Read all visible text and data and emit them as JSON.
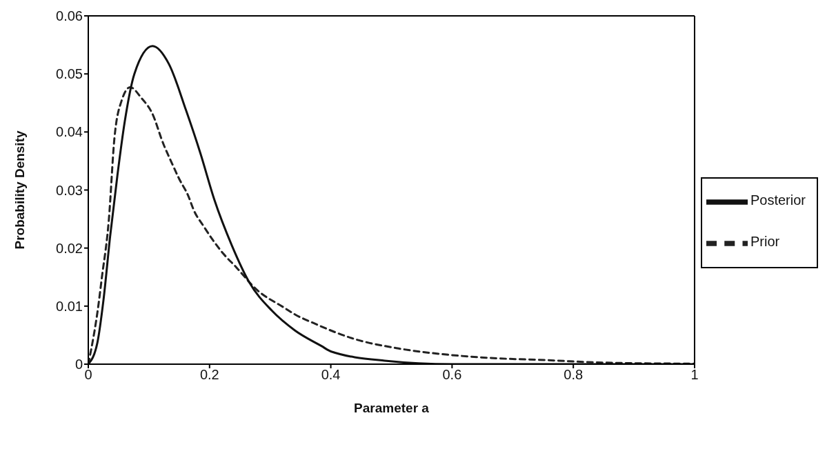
{
  "chart_data": {
    "type": "line",
    "xlabel": "Parameter a",
    "ylabel": "Probability Density",
    "xlim": [
      0,
      1
    ],
    "xticks": [
      0,
      0.2,
      0.4,
      0.6,
      0.8,
      1
    ],
    "ylim": [
      0,
      0.06
    ],
    "yticks": [
      0,
      0.01,
      0.02,
      0.03,
      0.04,
      0.05,
      0.06
    ],
    "legend": "right",
    "marker": "none",
    "series": [
      {
        "name": "Prior",
        "color": "#222222",
        "line_style": "dashed",
        "x": [
          0,
          0.017,
          0.022,
          0.034,
          0.043,
          0.055,
          0.069,
          0.088,
          0.105,
          0.124,
          0.138,
          0.15,
          0.164,
          0.175,
          0.19,
          0.206,
          0.223,
          0.244,
          0.277,
          0.322,
          0.342,
          0.371,
          0.437,
          0.512,
          0.596,
          0.676,
          0.755,
          0.84,
          0.98,
          1
        ],
        "values": [
          0,
          0.0104,
          0.0146,
          0.025,
          0.0388,
          0.0454,
          0.0477,
          0.0458,
          0.0433,
          0.0379,
          0.0346,
          0.0319,
          0.0292,
          0.0263,
          0.0238,
          0.0213,
          0.019,
          0.0167,
          0.0129,
          0.0098,
          0.0085,
          0.0071,
          0.0044,
          0.0027,
          0.0016,
          0.001,
          0.0007,
          0.0003,
          0.0001,
          0.0001
        ]
      },
      {
        "name": "Posterior",
        "color": "#111111",
        "line_style": "solid",
        "x": [
          0,
          0.015,
          0.025,
          0.036,
          0.048,
          0.06,
          0.076,
          0.106,
          0.133,
          0.161,
          0.185,
          0.208,
          0.237,
          0.265,
          0.303,
          0.341,
          0.385,
          0.4,
          0.489,
          0.6,
          0.8,
          1
        ],
        "values": [
          0,
          0.0037,
          0.011,
          0.022,
          0.0325,
          0.0417,
          0.05,
          0.0548,
          0.0517,
          0.0438,
          0.0363,
          0.0283,
          0.0204,
          0.0142,
          0.0092,
          0.0058,
          0.0031,
          0.0022,
          0.0006,
          0,
          0,
          0
        ]
      }
    ]
  }
}
